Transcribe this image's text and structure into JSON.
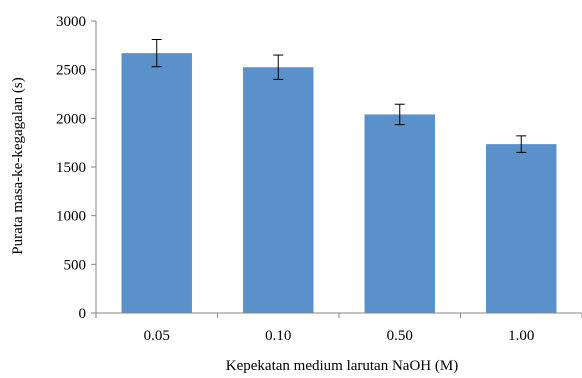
{
  "chart_data": {
    "type": "bar",
    "categories": [
      "0.05",
      "0.10",
      "0.50",
      "1.00"
    ],
    "values": [
      2670,
      2525,
      2040,
      1735
    ],
    "error": [
      140,
      125,
      105,
      85
    ],
    "title": "",
    "xlabel": "Kepekatan medium larutan NaOH (M)",
    "ylabel": "Purata masa-ke-kegagalan (s)",
    "ylim": [
      0,
      3000
    ],
    "yticks": [
      "0",
      "500",
      "1000",
      "1500",
      "2000",
      "2500",
      "3000"
    ],
    "yticks_values": [
      0,
      500,
      1000,
      1500,
      2000,
      2500,
      3000
    ],
    "bar_color": "#5b91cb",
    "grid": false,
    "legend": "none"
  }
}
